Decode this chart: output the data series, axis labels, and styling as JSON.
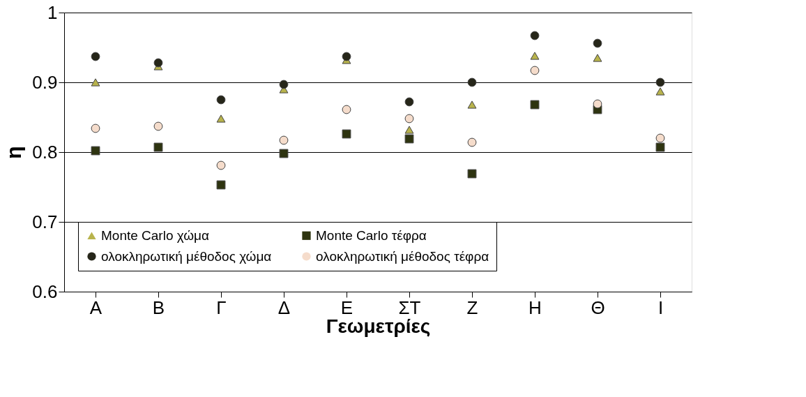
{
  "chart_data": {
    "type": "scatter",
    "xlabel": "Γεωμετρίες",
    "ylabel": "η",
    "categories": [
      "Α",
      "Β",
      "Γ",
      "Δ",
      "Ε",
      "ΣΤ",
      "Ζ",
      "Η",
      "Θ",
      "Ι"
    ],
    "ylim": [
      0.6,
      1
    ],
    "yticks": [
      0.6,
      0.7,
      0.8,
      0.9,
      1
    ],
    "grid": "y",
    "legend": "bottom",
    "series": [
      {
        "name": "Monte Carlo χώμα",
        "color": "#b8b34c",
        "marker": "triangle",
        "values": [
          0.9,
          0.923,
          0.848,
          0.89,
          0.932,
          0.832,
          0.868,
          0.938,
          0.935,
          0.887
        ]
      },
      {
        "name": "Monte Carlo τέφρα",
        "color": "#2e3410",
        "marker": "square",
        "values": [
          0.802,
          0.807,
          0.753,
          0.798,
          0.826,
          0.819,
          0.769,
          0.868,
          0.861,
          0.807
        ]
      },
      {
        "name": "ολοκληρωτική μέθοδος χώμα",
        "color": "#262619",
        "marker": "circle",
        "values": [
          0.937,
          0.928,
          0.875,
          0.897,
          0.937,
          0.872,
          0.9,
          0.967,
          0.956,
          0.9
        ]
      },
      {
        "name": "ολοκληρωτική μέθοδος τέφρα",
        "color": "#f5dccb",
        "marker": "circle",
        "values": [
          0.834,
          0.837,
          0.781,
          0.817,
          0.861,
          0.848,
          0.814,
          0.917,
          0.869,
          0.82
        ]
      }
    ]
  }
}
